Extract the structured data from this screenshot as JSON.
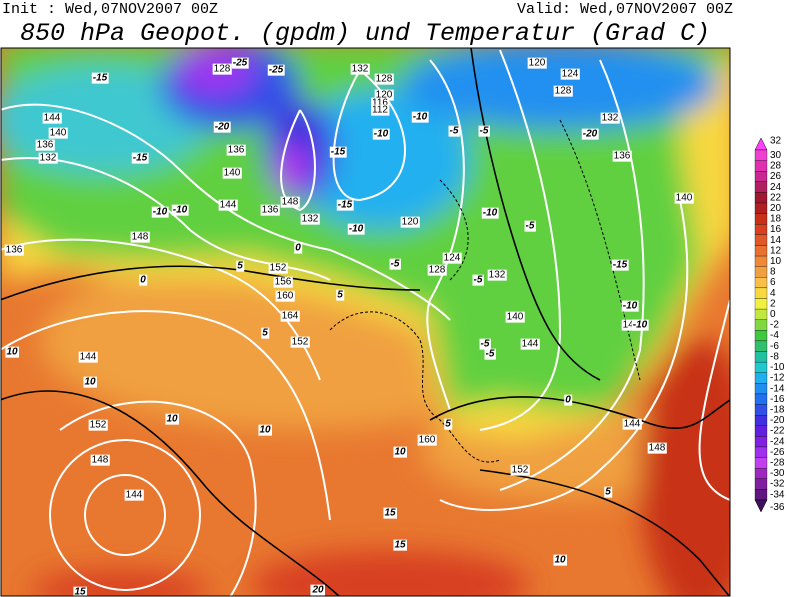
{
  "header": {
    "init": "Init : Wed,07NOV2007 00Z",
    "valid": "Valid: Wed,07NOV2007 00Z",
    "title": "850 hPa Geopot. (gpdm) und Temperatur (Grad C)"
  },
  "legend": {
    "labels": [
      32,
      30,
      28,
      26,
      24,
      22,
      20,
      18,
      16,
      14,
      12,
      10,
      8,
      6,
      4,
      2,
      0,
      -2,
      -4,
      -6,
      -8,
      -10,
      -12,
      -14,
      -16,
      -18,
      -20,
      -22,
      -24,
      -26,
      -28,
      -30,
      -32,
      -34,
      -36
    ],
    "colors": [
      "#ff40ff",
      "#f040d0",
      "#e030b0",
      "#c82890",
      "#b02060",
      "#a01830",
      "#b02020",
      "#c83018",
      "#d84020",
      "#e05828",
      "#e87030",
      "#f08838",
      "#f0a040",
      "#f8c048",
      "#f8d840",
      "#f0f040",
      "#c0e840",
      "#80d840",
      "#40c840",
      "#30c070",
      "#20c0a0",
      "#20c8d0",
      "#20b0f0",
      "#2090f0",
      "#2070f0",
      "#3050e8",
      "#4030e0",
      "#6020e0",
      "#8020e0",
      "#a030f0",
      "#c040f0",
      "#a028c0",
      "#8020a0",
      "#601880",
      "#401060"
    ]
  },
  "map_labels": {
    "geopotential": [
      "128",
      "132",
      "128",
      "120",
      "124",
      "128",
      "132",
      "136",
      "144",
      "140",
      "136",
      "132",
      "136",
      "140",
      "144",
      "148",
      "148",
      "152",
      "156",
      "160",
      "164",
      "152",
      "144",
      "152",
      "148",
      "144",
      "152",
      "160",
      "140",
      "144",
      "136",
      "132",
      "120",
      "124",
      "128",
      "132",
      "144",
      "148",
      "144",
      "140",
      "136",
      "120",
      "116",
      "112"
    ],
    "temperature": [
      "-15",
      "-25",
      "-25",
      "-20",
      "-15",
      "-10",
      "-10",
      "-10",
      "-5",
      "-5",
      "-20",
      "-15",
      "-10",
      "-5",
      "-5",
      "-10",
      "-15",
      "-10",
      "-5",
      "0",
      "0",
      "5",
      "5",
      "10",
      "10",
      "10",
      "10",
      "15",
      "15",
      "20",
      "15",
      "5",
      "0",
      "-5",
      "-5",
      "-10",
      "-15",
      "-10",
      "5",
      "10",
      "10",
      "5"
    ]
  }
}
